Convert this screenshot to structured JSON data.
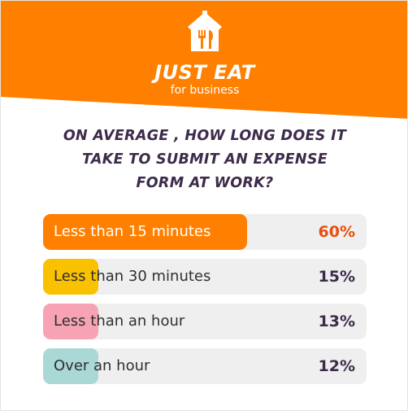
{
  "brand": {
    "name": "JUST EAT",
    "sub": "for business",
    "logo_icon": "house-fork-knife-icon",
    "color": "#ff8000"
  },
  "question": "ON AVERAGE , HOW LONG DOES IT\nTAKE TO SUBMIT AN EXPENSE\nFORM AT WORK?",
  "chart_data": {
    "type": "bar",
    "orientation": "horizontal",
    "categories": [
      "Less than 15 minutes",
      "Less than 30 minutes",
      "Less than an hour",
      "Over an hour"
    ],
    "values": [
      60,
      15,
      13,
      12
    ],
    "value_labels": [
      "60%",
      "15%",
      "13%",
      "12%"
    ],
    "colors": [
      "#ff8000",
      "#f9c100",
      "#f7a3b5",
      "#a9d8d6"
    ],
    "label_colors": [
      "#ffffff",
      "#2f2f2f",
      "#2f2f2f",
      "#2f2f2f"
    ],
    "value_colors": [
      "#e8500d",
      "#3c2b4a",
      "#3c2b4a",
      "#3c2b4a"
    ],
    "track_color": "#efefef",
    "ylim": [
      0,
      100
    ]
  }
}
